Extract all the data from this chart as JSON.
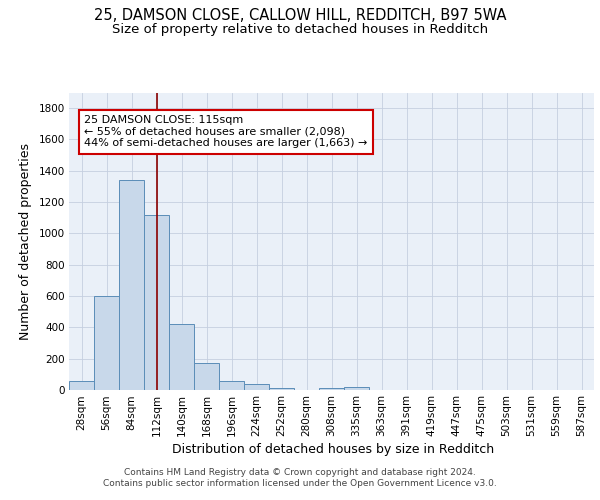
{
  "title_line1": "25, DAMSON CLOSE, CALLOW HILL, REDDITCH, B97 5WA",
  "title_line2": "Size of property relative to detached houses in Redditch",
  "xlabel": "Distribution of detached houses by size in Redditch",
  "ylabel": "Number of detached properties",
  "bar_labels": [
    "28sqm",
    "56sqm",
    "84sqm",
    "112sqm",
    "140sqm",
    "168sqm",
    "196sqm",
    "224sqm",
    "252sqm",
    "280sqm",
    "308sqm",
    "335sqm",
    "363sqm",
    "391sqm",
    "419sqm",
    "447sqm",
    "475sqm",
    "503sqm",
    "531sqm",
    "559sqm",
    "587sqm"
  ],
  "bar_values": [
    55,
    600,
    1340,
    1115,
    420,
    170,
    58,
    38,
    12,
    0,
    15,
    20,
    0,
    0,
    0,
    0,
    0,
    0,
    0,
    0,
    0
  ],
  "bar_color": "#c8d8ea",
  "bar_edge_color": "#5b8db8",
  "property_line_x": 3.0,
  "property_line_color": "#8b0000",
  "annotation_line1": "25 DAMSON CLOSE: 115sqm",
  "annotation_line2": "← 55% of detached houses are smaller (2,098)",
  "annotation_line3": "44% of semi-detached houses are larger (1,663) →",
  "annotation_box_color": "white",
  "annotation_box_edge": "#cc0000",
  "ylim": [
    0,
    1900
  ],
  "yticks": [
    0,
    200,
    400,
    600,
    800,
    1000,
    1200,
    1400,
    1600,
    1800
  ],
  "background_color": "#eaf0f8",
  "footer_text": "Contains HM Land Registry data © Crown copyright and database right 2024.\nContains public sector information licensed under the Open Government Licence v3.0.",
  "title_fontsize": 10.5,
  "subtitle_fontsize": 9.5,
  "axis_label_fontsize": 9,
  "tick_fontsize": 7.5,
  "annotation_fontsize": 8,
  "footer_fontsize": 6.5
}
